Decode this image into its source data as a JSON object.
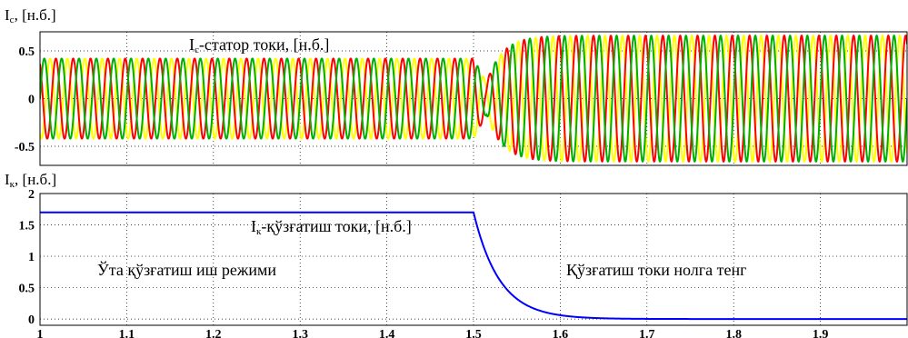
{
  "chart_data": [
    {
      "type": "line",
      "ylabel_main": "I",
      "ylabel_sub": "с",
      "ylabel_unit": ", [н.б.]",
      "annotation_main": "I",
      "annotation_sub": "с",
      "annotation_rest": "-статор токи, [н.б.]",
      "xlim": [
        1,
        2
      ],
      "ylim": [
        -0.7,
        0.7
      ],
      "yticks": [
        -0.5,
        0,
        0.5
      ],
      "ytick_labels": [
        "-0.5",
        "0",
        "0.5"
      ],
      "grid": true,
      "frequency_hz": 50,
      "transition_t": 1.5,
      "series": [
        {
          "phase_deg": 0,
          "color": "#00b000"
        },
        {
          "phase_deg": -120,
          "color": "#ffff00"
        },
        {
          "phase_deg": 120,
          "color": "#ff0000"
        }
      ],
      "amplitude_before": 0.42,
      "amplitude_after": 0.66,
      "amplitude_min": 0.17,
      "amplitude_min_t": 1.515
    },
    {
      "type": "line",
      "ylabel_main": "I",
      "ylabel_sub": "к",
      "ylabel_unit": ", [н.б.]",
      "annotation_main": "I",
      "annotation_sub": "к",
      "annotation_rest": "-қўзғатиш токи, [н.б.]",
      "annotation_left": "Ўта қўзғатиш иш режими",
      "annotation_right": "Қўзғатиш токи нолга тенг",
      "xlim": [
        1,
        2
      ],
      "ylim": [
        -0.1,
        2
      ],
      "yticks": [
        0,
        0.5,
        1,
        1.5,
        2
      ],
      "ytick_labels": [
        "0",
        "0.5",
        "1",
        "1.5",
        "2"
      ],
      "xticks": [
        1,
        1.1,
        1.2,
        1.3,
        1.4,
        1.5,
        1.6,
        1.7,
        1.8,
        1.9
      ],
      "xtick_labels": [
        "1",
        "1.1",
        "1.2",
        "1.3",
        "1.4",
        "1.5",
        "1.6",
        "1.7",
        "1.8",
        "1.9"
      ],
      "grid": true,
      "color": "#0000ff",
      "value_before": 1.7,
      "step_t": 1.5,
      "decay_time_constant": 0.03,
      "x": [
        1.0,
        1.5,
        1.52,
        1.54,
        1.56,
        1.58,
        1.6,
        1.65,
        1.7,
        1.8,
        1.9,
        2.0
      ],
      "y": [
        1.7,
        1.7,
        0.87,
        0.5,
        0.3,
        0.17,
        0.1,
        0.05,
        0.02,
        0.005,
        0.0,
        0.0
      ]
    }
  ]
}
